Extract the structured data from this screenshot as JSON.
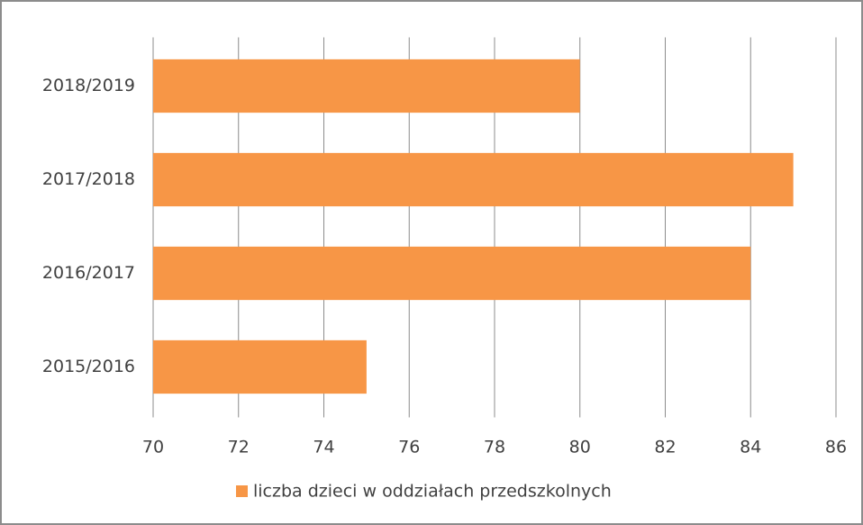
{
  "chart_data": {
    "type": "barh",
    "categories": [
      "2015/2016",
      "2016/2017",
      "2017/2018",
      "2018/2019"
    ],
    "series": [
      {
        "name": "liczba dzieci w oddziałach przedszkolnych",
        "color": "#f79646",
        "values": [
          75,
          84,
          85,
          80
        ]
      }
    ],
    "xlim": [
      70,
      86
    ],
    "xticks": [
      70,
      72,
      74,
      76,
      78,
      80,
      82,
      84,
      86
    ],
    "grid": true,
    "legend": "bottom"
  }
}
